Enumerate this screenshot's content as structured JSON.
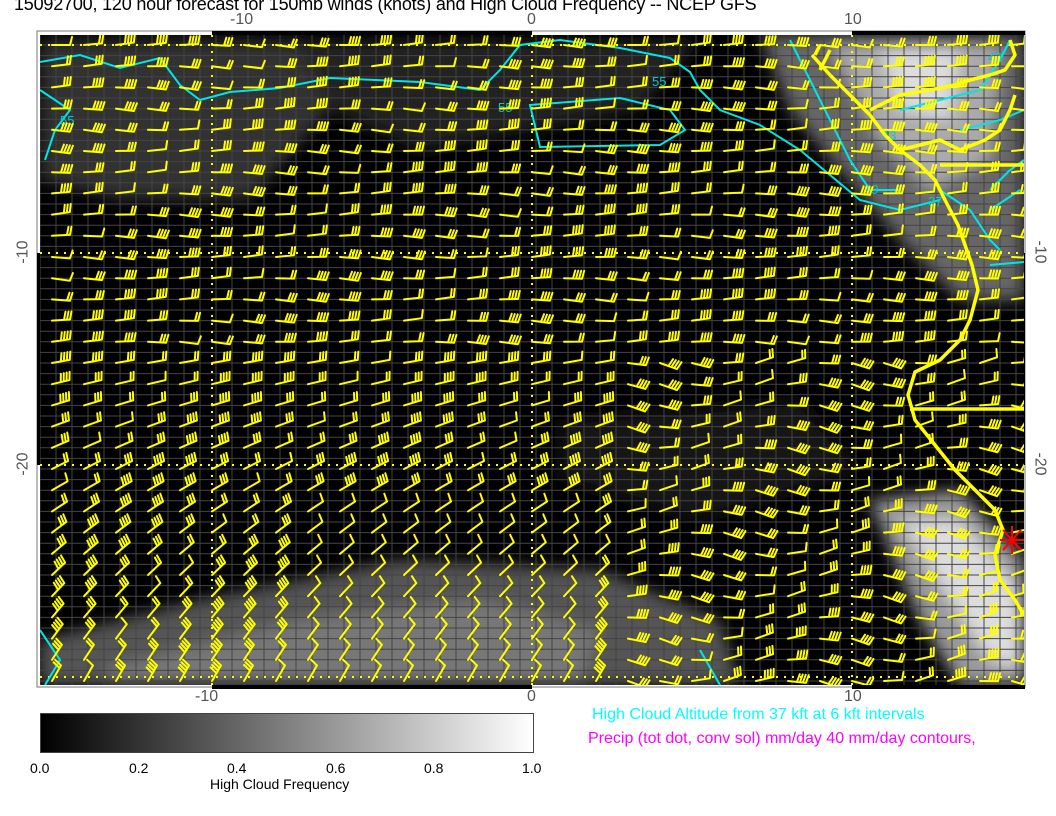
{
  "title": "15092700, 120 hour forecast for 150mb winds (knots) and High Cloud Frequency -- NCEP GFS",
  "map": {
    "lon_ticks": [
      "-10",
      "0",
      "10"
    ],
    "lat_ticks": [
      "-10",
      "-20"
    ],
    "contour_labels": [
      "55",
      "55",
      "55",
      "49",
      "43",
      "37",
      "43"
    ],
    "colors": {
      "wind_barbs": "#ffff00",
      "coastline": "#ffff00",
      "cloud_altitude_contours": "#00ffff",
      "precip": "#ff00ff",
      "marker": "#ff0000",
      "background": "#000000"
    },
    "marker_icon": "red-asterisk"
  },
  "colorbar": {
    "ticks": [
      "0.0",
      "0.2",
      "0.4",
      "0.6",
      "0.8",
      "1.0"
    ],
    "label": "High Cloud Frequency",
    "range": [
      0.0,
      1.0
    ]
  },
  "legend": {
    "cloud_altitude": "High Cloud Altitude from 37 kft at 6 kft intervals",
    "precip": "Precip (tot dot, conv sol) mm/day 40 mm/day contours,"
  }
}
